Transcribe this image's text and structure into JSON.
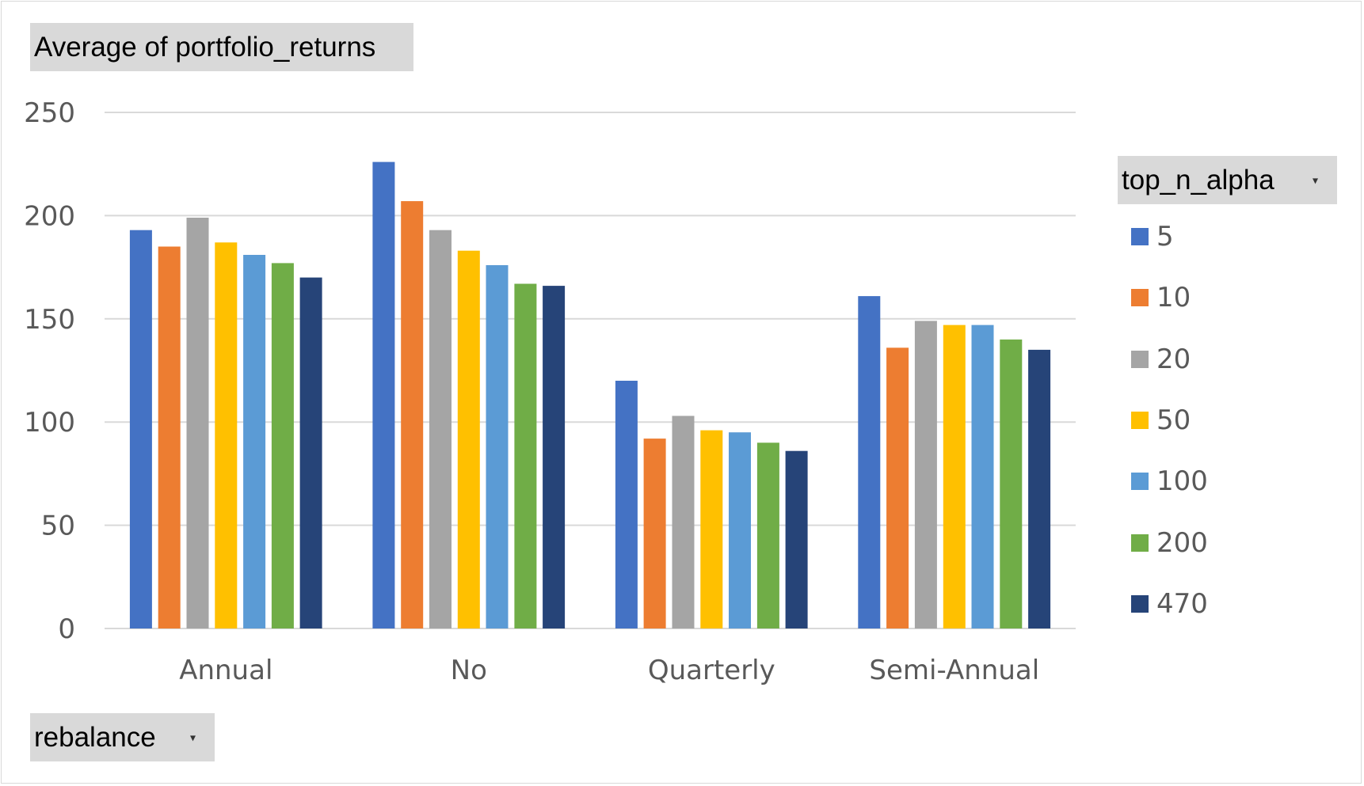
{
  "title_button": {
    "label": "Average  of portfolio_returns"
  },
  "legend_button": {
    "label": "top_n_alpha"
  },
  "axis_button": {
    "label": "rebalance"
  },
  "chart_data": {
    "type": "bar",
    "categories": [
      "Annual",
      "No",
      "Quarterly",
      "Semi-Annual"
    ],
    "ylim": [
      0,
      250
    ],
    "yticks": [
      0,
      50,
      100,
      150,
      200,
      250
    ],
    "grid": true,
    "legend_position": "right",
    "legend_title": "top_n_alpha",
    "series": [
      {
        "name": "5",
        "color": "#4472C4",
        "values": [
          193,
          226,
          120,
          161
        ]
      },
      {
        "name": "10",
        "color": "#ED7D31",
        "values": [
          185,
          207,
          92,
          136
        ]
      },
      {
        "name": "20",
        "color": "#A5A5A5",
        "values": [
          199,
          193,
          103,
          149
        ]
      },
      {
        "name": "50",
        "color": "#FFC000",
        "values": [
          187,
          183,
          96,
          147
        ]
      },
      {
        "name": "100",
        "color": "#5B9BD5",
        "values": [
          181,
          176,
          95,
          147
        ]
      },
      {
        "name": "200",
        "color": "#70AD47",
        "values": [
          177,
          167,
          90,
          140
        ]
      },
      {
        "name": "470",
        "color": "#264478",
        "values": [
          170,
          166,
          86,
          135
        ]
      }
    ]
  }
}
